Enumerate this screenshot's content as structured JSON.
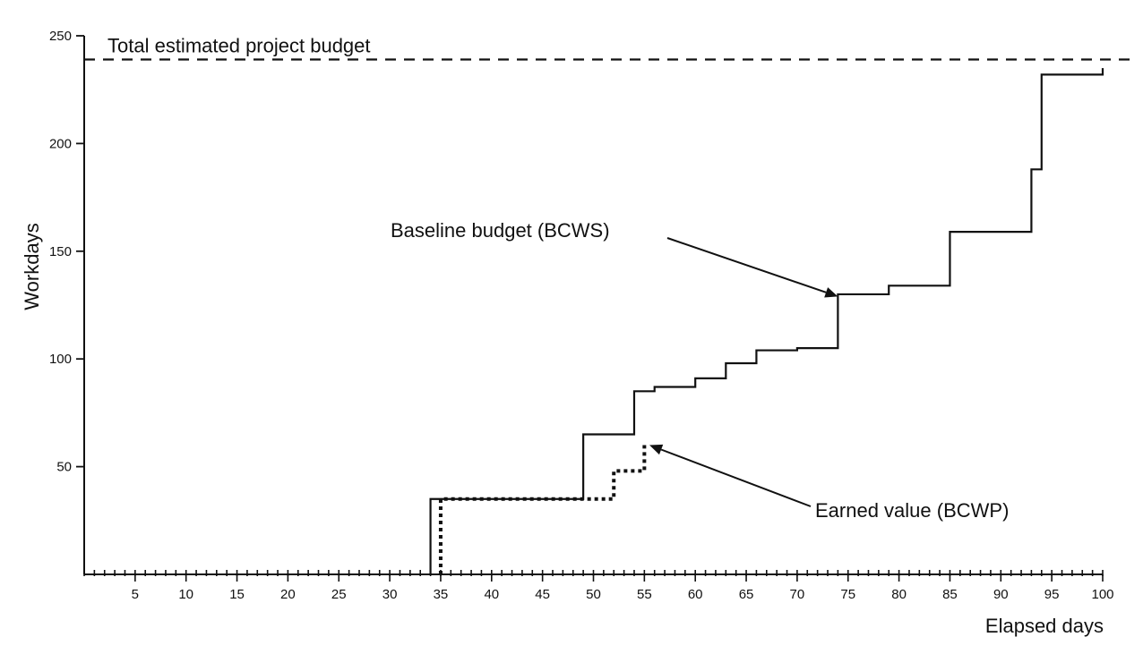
{
  "chart_data": {
    "type": "line",
    "title": "",
    "xlabel": "Elapsed days",
    "ylabel": "Workdays",
    "xlim": [
      0,
      100
    ],
    "ylim": [
      0,
      250
    ],
    "x_ticks": [
      5,
      10,
      15,
      20,
      25,
      30,
      35,
      40,
      45,
      50,
      55,
      60,
      65,
      70,
      75,
      80,
      85,
      90,
      95,
      100
    ],
    "y_ticks": [
      50,
      100,
      150,
      200,
      250
    ],
    "grid": false,
    "series": [
      {
        "name": "Baseline budget (BCWS)",
        "style": "solid-step",
        "points": [
          [
            34,
            0
          ],
          [
            34,
            35
          ],
          [
            49,
            35
          ],
          [
            49,
            65
          ],
          [
            54,
            65
          ],
          [
            54,
            85
          ],
          [
            56,
            85
          ],
          [
            56,
            87
          ],
          [
            60,
            87
          ],
          [
            60,
            91
          ],
          [
            63,
            91
          ],
          [
            63,
            98
          ],
          [
            66,
            98
          ],
          [
            66,
            104
          ],
          [
            70,
            104
          ],
          [
            70,
            105
          ],
          [
            74,
            105
          ],
          [
            74,
            130
          ],
          [
            79,
            130
          ],
          [
            79,
            134
          ],
          [
            85,
            134
          ],
          [
            85,
            159
          ],
          [
            93,
            159
          ],
          [
            93,
            188
          ],
          [
            94,
            188
          ],
          [
            94,
            232
          ],
          [
            100,
            232
          ],
          [
            100,
            235
          ]
        ]
      },
      {
        "name": "Earned value (BCWP)",
        "style": "dotted-step",
        "points": [
          [
            35,
            0
          ],
          [
            35,
            35
          ],
          [
            52,
            35
          ],
          [
            52,
            48
          ],
          [
            55,
            48
          ],
          [
            55,
            60
          ]
        ]
      }
    ],
    "reference_lines": [
      {
        "label": "Total estimated project budget",
        "y": 239,
        "style": "dashed"
      }
    ],
    "annotations": [
      {
        "text": "Baseline budget (BCWS)",
        "target": [
          74,
          129
        ]
      },
      {
        "text": "Earned value (BCWP)",
        "target": [
          55.5,
          60
        ]
      }
    ]
  }
}
